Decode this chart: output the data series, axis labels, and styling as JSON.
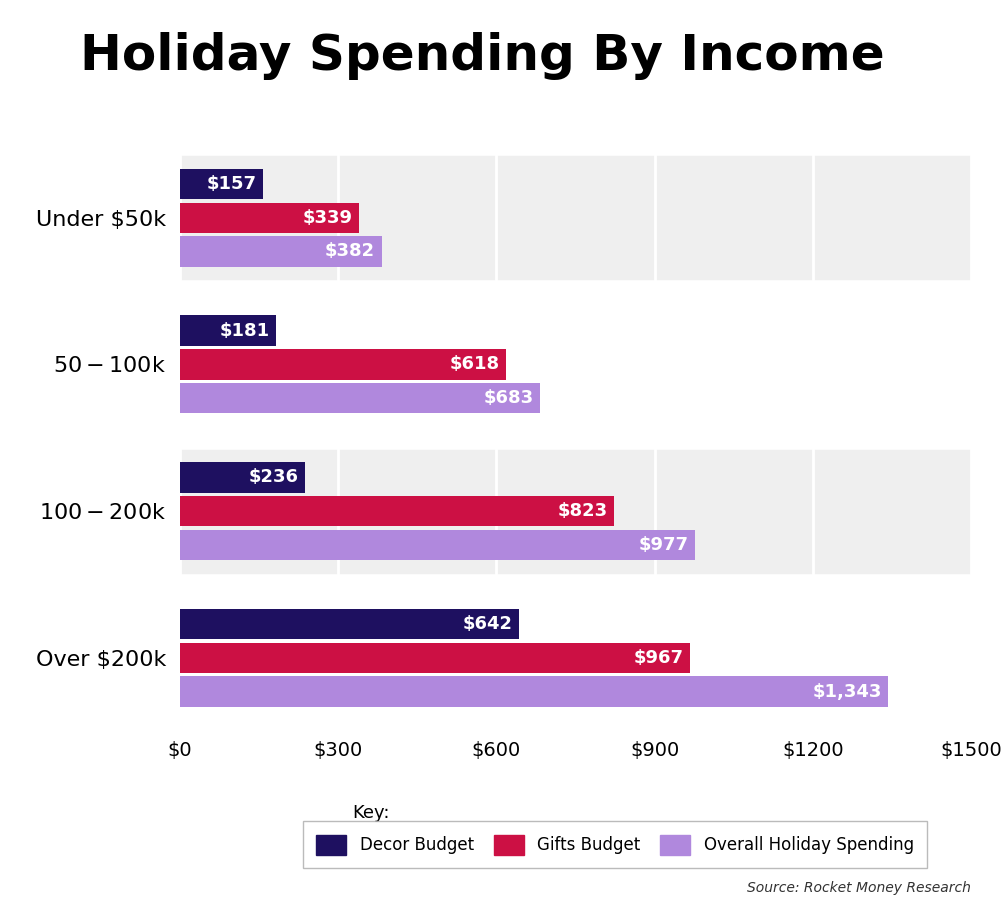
{
  "title": "Holiday Spending By Income",
  "title_fontsize": 36,
  "title_fontweight": "bold",
  "categories": [
    "Over $200k",
    "$100-$200k",
    "$50-$100k",
    "Under $50k"
  ],
  "categories_display": [
    "Over $200k",
    "$100-$200k",
    "$50-$100k",
    "Under $50k"
  ],
  "series": {
    "Decor Budget": [
      642,
      236,
      181,
      157
    ],
    "Gifts Budget": [
      967,
      823,
      618,
      339
    ],
    "Overall Holiday Spending": [
      1343,
      977,
      683,
      382
    ]
  },
  "bar_colors": {
    "Decor Budget": "#1E1060",
    "Gifts Budget": "#CC1044",
    "Overall Holiday Spending": "#B088DD"
  },
  "labels": {
    "Decor Budget": [
      "$642",
      "$236",
      "$181",
      "$157"
    ],
    "Gifts Budget": [
      "$967",
      "$823",
      "$618",
      "$339"
    ],
    "Overall Holiday Spending": [
      "$1,343",
      "$977",
      "$683",
      "$382"
    ]
  },
  "xlim": [
    0,
    1500
  ],
  "xticks": [
    0,
    300,
    600,
    900,
    1200,
    1500
  ],
  "xticklabels": [
    "$0",
    "$300",
    "$600",
    "$900",
    "$1200",
    "$1500"
  ],
  "xlabel_fontsize": 14,
  "bar_height": 0.23,
  "legend_labels": [
    "Decor Budget",
    "Gifts Budget",
    "Overall Holiday Spending"
  ],
  "source_text": "Source: Rocket Money Research",
  "background_color": "#FFFFFF",
  "stripe_color": "#EFEFEF",
  "label_fontsize": 13,
  "ylabel_fontsize": 16,
  "stripe_groups": [
    1,
    3
  ]
}
